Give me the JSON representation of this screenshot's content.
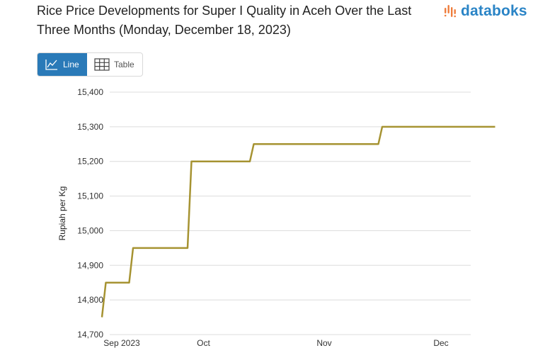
{
  "header": {
    "title": "Rice Price Developments for Super I Quality in Aceh Over the Last Three Months (Monday, December 18, 2023)",
    "brand": "databoks"
  },
  "toggle": {
    "line_label": "Line",
    "table_label": "Table"
  },
  "colors": {
    "line": "#a69332",
    "grid": "#dcdcdc",
    "accent": "#2a7ab8",
    "brand_dots": "#ef7d3c"
  },
  "chart_data": {
    "type": "line",
    "title": "Rice Price Developments for Super I Quality in Aceh Over the Last Three Months (Monday, December 18, 2023)",
    "xlabel": "",
    "ylabel": "Rupiah per Kg",
    "ylim": [
      14700,
      15400
    ],
    "yticks": [
      14700,
      14800,
      14900,
      15000,
      15100,
      15200,
      15300,
      15400
    ],
    "ytick_labels": [
      "14,700",
      "14,800",
      "14,900",
      "15,000",
      "15,100",
      "15,200",
      "15,300",
      "15,400"
    ],
    "x_range_days": [
      0,
      102
    ],
    "xticks": [
      {
        "day": 0,
        "label": "Sep 2023"
      },
      {
        "day": 21,
        "label": "Oct"
      },
      {
        "day": 52,
        "label": "Nov"
      },
      {
        "day": 82,
        "label": "Dec"
      }
    ],
    "grid": true,
    "legend": "none",
    "series": [
      {
        "name": "Super I Quality",
        "points": [
          {
            "day": -2,
            "value": 14750
          },
          {
            "day": -1,
            "value": 14850
          },
          {
            "day": 5,
            "value": 14850
          },
          {
            "day": 6,
            "value": 14950
          },
          {
            "day": 20,
            "value": 14950
          },
          {
            "day": 21,
            "value": 15200
          },
          {
            "day": 36,
            "value": 15200
          },
          {
            "day": 37,
            "value": 15250
          },
          {
            "day": 69,
            "value": 15250
          },
          {
            "day": 70,
            "value": 15300
          },
          {
            "day": 99,
            "value": 15300
          }
        ]
      }
    ]
  }
}
